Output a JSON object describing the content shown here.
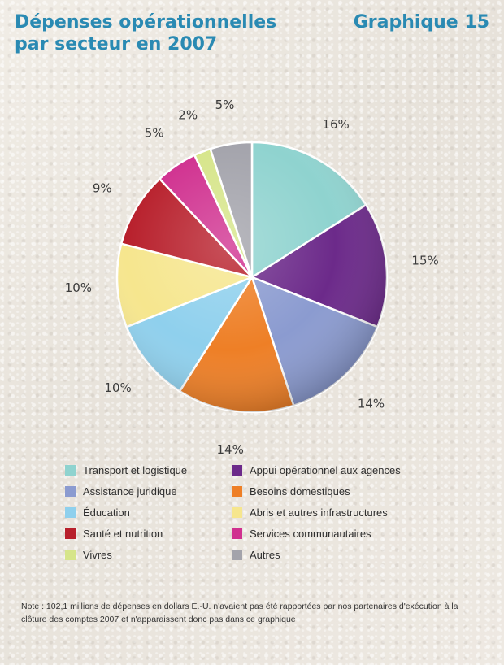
{
  "header": {
    "title": "Dépenses opérationnelles\npar secteur en 2007",
    "graph_number": "Graphique 15"
  },
  "chart_data": {
    "type": "pie",
    "title": "Dépenses opérationnelles par secteur en 2007",
    "unit": "%",
    "slices": [
      {
        "label": "Transport et logistique",
        "value": 16,
        "value_label": "16%",
        "color": "#8fd3cf"
      },
      {
        "label": "Appui opérationnel aux agences",
        "value": 15,
        "value_label": "15%",
        "color": "#6c2a8a"
      },
      {
        "label": "Assistance juridique",
        "value": 14,
        "value_label": "14%",
        "color": "#8b9bd0"
      },
      {
        "label": "Besoins domestiques",
        "value": 14,
        "value_label": "14%",
        "color": "#ee7f26"
      },
      {
        "label": "Éducation",
        "value": 10,
        "value_label": "10%",
        "color": "#8fd0ed"
      },
      {
        "label": "Abris et autres infrastructures",
        "value": 10,
        "value_label": "10%",
        "color": "#f6e68e"
      },
      {
        "label": "Santé et nutrition",
        "value": 9,
        "value_label": "9%",
        "color": "#b8202c"
      },
      {
        "label": "Services communautaires",
        "value": 5,
        "value_label": "5%",
        "color": "#d0308f"
      },
      {
        "label": "Vivres",
        "value": 2,
        "value_label": "2%",
        "color": "#d6e58a"
      },
      {
        "label": "Autres",
        "value": 5,
        "value_label": "5%",
        "color": "#a3a3ab"
      }
    ],
    "legend_placement": "bottom"
  },
  "legend": {
    "items": [
      {
        "label": "Transport et logistique",
        "color": "#8fd3cf"
      },
      {
        "label": "Appui opérationnel aux agences",
        "color": "#6c2a8a"
      },
      {
        "label": "Assistance juridique",
        "color": "#8b9bd0"
      },
      {
        "label": "Besoins domestiques",
        "color": "#ee7f26"
      },
      {
        "label": "Éducation",
        "color": "#8fd0ed"
      },
      {
        "label": "Abris et autres infrastructures",
        "color": "#f6e68e"
      },
      {
        "label": "Santé et nutrition",
        "color": "#b8202c"
      },
      {
        "label": "Services communautaires",
        "color": "#d0308f"
      },
      {
        "label": "Vivres",
        "color": "#d6e58a"
      },
      {
        "label": "Autres",
        "color": "#a3a3ab"
      }
    ]
  },
  "note": "Note : 102,1 millions de dépenses en dollars E.-U. n'avaient pas été rapportées par nos partenaires d'exécution à la clôture des comptes 2007 et n'apparaissent donc pas dans ce graphique",
  "colors": {
    "title": "#2a8ab3",
    "background": "#ece8e1"
  }
}
